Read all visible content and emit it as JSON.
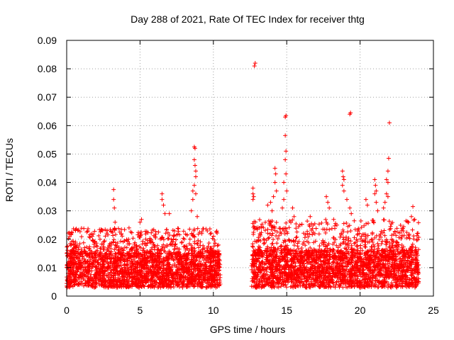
{
  "chart_data": {
    "type": "scatter",
    "title": "Day 288 of 2021, Rate Of TEC Index for receiver thtg",
    "xlabel": "GPS time / hours",
    "ylabel": "ROTI / TECUs",
    "xlim": [
      0,
      25
    ],
    "ylim": [
      0,
      0.09
    ],
    "xticks": [
      0,
      5,
      10,
      15,
      20,
      25
    ],
    "yticks": [
      0,
      0.01,
      0.02,
      0.03,
      0.04,
      0.05,
      0.06,
      0.07,
      0.08,
      0.09
    ],
    "xtick_labels": [
      "0",
      "5",
      "10",
      "15",
      "20",
      "25"
    ],
    "ytick_labels": [
      "0",
      "0.01",
      "0.02",
      "0.03",
      "0.04",
      "0.05",
      "0.06",
      "0.07",
      "0.08",
      "0.09"
    ],
    "grid": true,
    "marker": "+",
    "color": "#ff0000",
    "series": [
      {
        "name": "ROTI",
        "segments": [
          {
            "x_start": 0.0,
            "x_end": 10.5,
            "base_min": 0.003,
            "base_max": 0.015,
            "upper_max": 0.024
          },
          {
            "x_start": 12.6,
            "x_end": 24.0,
            "base_min": 0.003,
            "base_max": 0.016,
            "upper_max": 0.027
          }
        ],
        "outliers": [
          [
            3.2,
            0.0375
          ],
          [
            3.2,
            0.034
          ],
          [
            3.25,
            0.031
          ],
          [
            3.3,
            0.026
          ],
          [
            5.0,
            0.026
          ],
          [
            5.1,
            0.027
          ],
          [
            6.5,
            0.036
          ],
          [
            6.5,
            0.034
          ],
          [
            6.6,
            0.032
          ],
          [
            6.7,
            0.029
          ],
          [
            7.0,
            0.029
          ],
          [
            8.7,
            0.0525
          ],
          [
            8.75,
            0.052
          ],
          [
            8.7,
            0.048
          ],
          [
            8.75,
            0.046
          ],
          [
            8.8,
            0.044
          ],
          [
            8.8,
            0.042
          ],
          [
            8.7,
            0.039
          ],
          [
            8.6,
            0.037
          ],
          [
            8.8,
            0.036
          ],
          [
            8.6,
            0.034
          ],
          [
            8.5,
            0.03
          ],
          [
            8.9,
            0.028
          ],
          [
            12.7,
            0.038
          ],
          [
            12.7,
            0.036
          ],
          [
            12.75,
            0.035
          ],
          [
            12.7,
            0.034
          ],
          [
            12.8,
            0.081
          ],
          [
            12.85,
            0.082
          ],
          [
            14.2,
            0.045
          ],
          [
            14.25,
            0.043
          ],
          [
            14.2,
            0.04
          ],
          [
            14.3,
            0.037
          ],
          [
            13.9,
            0.033
          ],
          [
            14.0,
            0.03
          ],
          [
            13.7,
            0.032
          ],
          [
            14.1,
            0.035
          ],
          [
            14.9,
            0.063
          ],
          [
            14.95,
            0.0635
          ],
          [
            14.9,
            0.0565
          ],
          [
            14.95,
            0.051
          ],
          [
            14.9,
            0.048
          ],
          [
            14.95,
            0.043
          ],
          [
            14.8,
            0.04
          ],
          [
            15.0,
            0.037
          ],
          [
            14.8,
            0.034
          ],
          [
            14.7,
            0.031
          ],
          [
            15.4,
            0.031
          ],
          [
            15.5,
            0.028
          ],
          [
            16.6,
            0.028
          ],
          [
            16.8,
            0.025
          ],
          [
            17.7,
            0.035
          ],
          [
            17.8,
            0.033
          ],
          [
            17.9,
            0.031
          ],
          [
            18.2,
            0.027
          ],
          [
            18.8,
            0.044
          ],
          [
            18.85,
            0.042
          ],
          [
            18.9,
            0.041
          ],
          [
            18.8,
            0.039
          ],
          [
            18.9,
            0.037
          ],
          [
            19.1,
            0.034
          ],
          [
            19.3,
            0.031
          ],
          [
            19.4,
            0.029
          ],
          [
            19.3,
            0.064
          ],
          [
            19.35,
            0.0645
          ],
          [
            20.4,
            0.034
          ],
          [
            20.5,
            0.032
          ],
          [
            21.0,
            0.041
          ],
          [
            21.05,
            0.039
          ],
          [
            21.1,
            0.037
          ],
          [
            21.0,
            0.036
          ],
          [
            21.1,
            0.033
          ],
          [
            21.2,
            0.03
          ],
          [
            21.8,
            0.041
          ],
          [
            21.9,
            0.04
          ],
          [
            21.8,
            0.036
          ],
          [
            21.9,
            0.035
          ],
          [
            21.7,
            0.033
          ],
          [
            21.6,
            0.031
          ],
          [
            22.0,
            0.061
          ],
          [
            21.95,
            0.0485
          ],
          [
            21.9,
            0.044
          ],
          [
            23.6,
            0.0315
          ],
          [
            23.5,
            0.028
          ],
          [
            23.3,
            0.026
          ]
        ]
      }
    ]
  }
}
